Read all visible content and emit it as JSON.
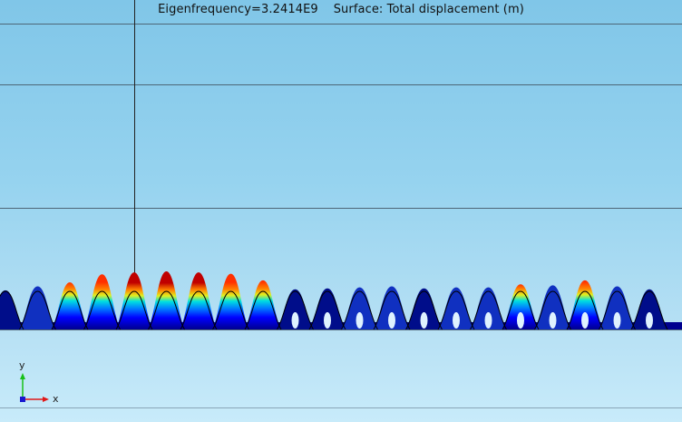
{
  "plot": {
    "title": "Eigenfrequency=3.2414E9    Surface: Total displacement (m)"
  },
  "triad": {
    "x_label": "x",
    "y_label": "y",
    "x_color": "#e01818",
    "y_color": "#18c018",
    "z_color": "#1818d0"
  },
  "colors": {
    "background_top": "#80c6e8",
    "background_bottom": "#c8ebfa",
    "grid_line": "#4d6677",
    "structure_low": "#00008f",
    "structure_high": "#9a0000"
  },
  "structure": {
    "teeth_count": 21,
    "displacement_levels": [
      0.05,
      0.25,
      0.45,
      0.85,
      0.95,
      1.0,
      0.95,
      0.88,
      0.55,
      0.1,
      0.15,
      0.2,
      0.25,
      0.15,
      0.2,
      0.2,
      0.35,
      0.3,
      0.55,
      0.25,
      0.1
    ]
  }
}
